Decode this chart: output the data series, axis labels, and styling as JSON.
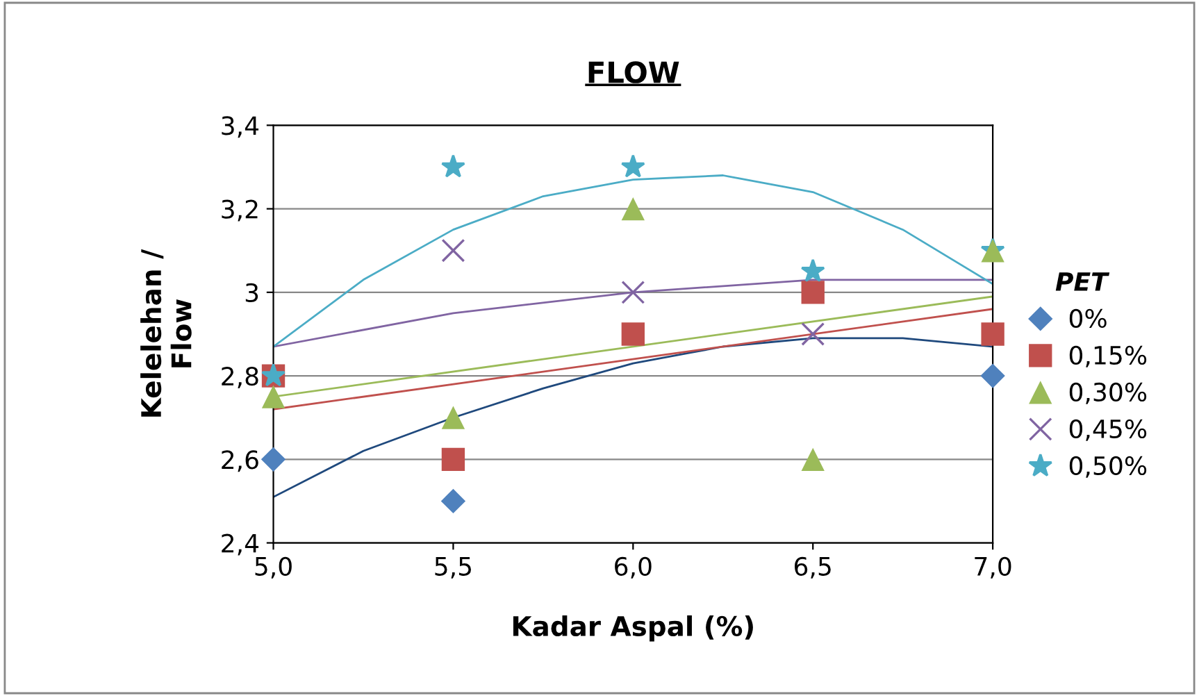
{
  "chart_data": {
    "type": "scatter",
    "title": "FLOW",
    "xlabel": "Kadar Aspal (%)",
    "ylabel": "Kelelehan /\nFlow",
    "legend_title": "PET",
    "x": [
      5.0,
      5.5,
      6.0,
      6.5,
      7.0
    ],
    "series": [
      {
        "name": "0%",
        "color": "#4f81bd",
        "marker": "diamond",
        "values": [
          2.6,
          2.5,
          null,
          null,
          2.8
        ]
      },
      {
        "name": "0,15%",
        "color": "#c0504d",
        "marker": "square",
        "values": [
          2.8,
          2.6,
          2.9,
          3.0,
          2.9
        ]
      },
      {
        "name": "0,30%",
        "color": "#9bbb59",
        "marker": "triangle",
        "values": [
          2.75,
          2.7,
          3.2,
          2.6,
          3.1
        ]
      },
      {
        "name": "0,45%",
        "color": "#8064a2",
        "marker": "cross",
        "values": [
          null,
          3.1,
          3.0,
          2.9,
          null
        ]
      },
      {
        "name": "0,50%",
        "color": "#4bacc6",
        "marker": "star",
        "values": [
          2.8,
          3.3,
          3.3,
          3.05,
          3.1
        ]
      },
      {
        "type": "line",
        "color": "#1f497d",
        "x": [
          5.0,
          5.25,
          5.5,
          5.75,
          6.0,
          6.25,
          6.5,
          6.75,
          7.0
        ],
        "values": [
          2.51,
          2.62,
          2.7,
          2.77,
          2.83,
          2.87,
          2.89,
          2.89,
          2.87
        ]
      },
      {
        "type": "line",
        "color": "#c0504d",
        "x": [
          5.0,
          7.0
        ],
        "values": [
          2.72,
          2.96
        ]
      },
      {
        "type": "line",
        "color": "#9bbb59",
        "x": [
          5.0,
          7.0
        ],
        "values": [
          2.75,
          2.99
        ]
      },
      {
        "type": "line",
        "color": "#8064a2",
        "x": [
          5.0,
          5.5,
          6.0,
          6.5,
          7.0
        ],
        "values": [
          2.87,
          2.95,
          3.0,
          3.03,
          3.03
        ]
      },
      {
        "type": "line",
        "color": "#4bacc6",
        "x": [
          5.0,
          5.25,
          5.5,
          5.75,
          6.0,
          6.25,
          6.5,
          6.75,
          7.0
        ],
        "values": [
          2.87,
          3.03,
          3.15,
          3.23,
          3.27,
          3.28,
          3.24,
          3.15,
          3.02
        ]
      }
    ],
    "xlim": [
      5.0,
      7.0
    ],
    "xticks": [
      {
        "value": 5.0,
        "label": "5,0"
      },
      {
        "value": 5.5,
        "label": "5,5"
      },
      {
        "value": 6.0,
        "label": "6,0"
      },
      {
        "value": 6.5,
        "label": "6,5"
      },
      {
        "value": 7.0,
        "label": "7,0"
      }
    ],
    "ylim": [
      2.4,
      3.4
    ],
    "yticks": [
      {
        "value": 2.4,
        "label": "2,4"
      },
      {
        "value": 2.6,
        "label": "2,6"
      },
      {
        "value": 2.8,
        "label": "2,8"
      },
      {
        "value": 3.0,
        "label": "3"
      },
      {
        "value": 3.2,
        "label": "3,2"
      },
      {
        "value": 3.4,
        "label": "3,4"
      }
    ],
    "grid": "y",
    "legend": "right"
  }
}
